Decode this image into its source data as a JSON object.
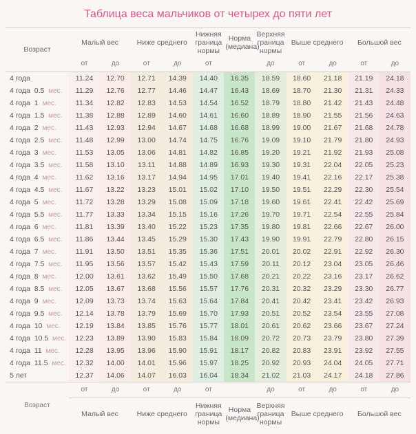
{
  "title": "Таблица веса мальчиков от четырех до пяти лет",
  "headers": {
    "age": "Возраст",
    "low": "Малый вес",
    "below": "Ниже среднего",
    "norm_low": "Нижняя граница нормы",
    "median": "Норма (медиана)",
    "norm_high": "Верхняя граница нормы",
    "above": "Выше среднего",
    "big": "Большой вес",
    "from": "от",
    "to": "до",
    "mes": "мес."
  },
  "rows": [
    {
      "age": "4 года",
      "sub": "",
      "v": [
        "11.24",
        "12.70",
        "12.71",
        "14.39",
        "14.40",
        "16.35",
        "18.59",
        "18.60",
        "21.18",
        "21.19",
        "24.18"
      ]
    },
    {
      "age": "4 года",
      "sub": "0.5",
      "v": [
        "11.29",
        "12.76",
        "12.77",
        "14.46",
        "14.47",
        "16.43",
        "18.69",
        "18.70",
        "21.30",
        "21.31",
        "24.33"
      ]
    },
    {
      "age": "4 года",
      "sub": "1",
      "v": [
        "11.34",
        "12.82",
        "12.83",
        "14.53",
        "14.54",
        "16.52",
        "18.79",
        "18.80",
        "21.42",
        "21.43",
        "24.48"
      ]
    },
    {
      "age": "4 года",
      "sub": "1.5",
      "v": [
        "11.38",
        "12.88",
        "12.89",
        "14.60",
        "14.61",
        "16.60",
        "18.89",
        "18.90",
        "21.55",
        "21.56",
        "24.63"
      ]
    },
    {
      "age": "4 года",
      "sub": "2",
      "v": [
        "11.43",
        "12.93",
        "12.94",
        "14.67",
        "14.68",
        "16.68",
        "18.99",
        "19.00",
        "21.67",
        "21.68",
        "24.78"
      ]
    },
    {
      "age": "4 года",
      "sub": "2.5",
      "v": [
        "11.48",
        "12.99",
        "13.00",
        "14.74",
        "14.75",
        "16.76",
        "19.09",
        "19.10",
        "21.79",
        "21.80",
        "24.93"
      ]
    },
    {
      "age": "4 года",
      "sub": "3",
      "v": [
        "11.53",
        "13.05",
        "13.06",
        "14.81",
        "14.82",
        "16.85",
        "19.20",
        "19.21",
        "21.92",
        "21.93",
        "25.08"
      ]
    },
    {
      "age": "4 года",
      "sub": "3.5",
      "v": [
        "11.58",
        "13.10",
        "13.11",
        "14.88",
        "14.89",
        "16.93",
        "19.30",
        "19.31",
        "22.04",
        "22.05",
        "25.23"
      ]
    },
    {
      "age": "4 года",
      "sub": "4",
      "v": [
        "11.62",
        "13.16",
        "13.17",
        "14.94",
        "14.95",
        "17.01",
        "19.40",
        "19.41",
        "22.16",
        "22.17",
        "25.38"
      ]
    },
    {
      "age": "4 года",
      "sub": "4.5",
      "v": [
        "11.67",
        "13.22",
        "13.23",
        "15.01",
        "15.02",
        "17.10",
        "19.50",
        "19.51",
        "22.29",
        "22.30",
        "25.54"
      ]
    },
    {
      "age": "4 года",
      "sub": "5",
      "v": [
        "11.72",
        "13.28",
        "13.29",
        "15.08",
        "15.09",
        "17.18",
        "19.60",
        "19.61",
        "22.41",
        "22.42",
        "25.69"
      ]
    },
    {
      "age": "4 года",
      "sub": "5.5",
      "v": [
        "11.77",
        "13.33",
        "13.34",
        "15.15",
        "15.16",
        "17.26",
        "19.70",
        "19.71",
        "22.54",
        "22.55",
        "25.84"
      ]
    },
    {
      "age": "4 года",
      "sub": "6",
      "v": [
        "11.81",
        "13.39",
        "13.40",
        "15.22",
        "15.23",
        "17.35",
        "19.80",
        "19.81",
        "22.66",
        "22.67",
        "26.00"
      ]
    },
    {
      "age": "4 года",
      "sub": "6.5",
      "v": [
        "11.86",
        "13.44",
        "13.45",
        "15.29",
        "15.30",
        "17.43",
        "19.90",
        "19.91",
        "22.79",
        "22.80",
        "26.15"
      ]
    },
    {
      "age": "4 года",
      "sub": "7",
      "v": [
        "11.91",
        "13.50",
        "13.51",
        "15.35",
        "15.36",
        "17.51",
        "20.01",
        "20.02",
        "22.91",
        "22.92",
        "26.30"
      ]
    },
    {
      "age": "4 года",
      "sub": "7.5",
      "v": [
        "11.95",
        "13.56",
        "13.57",
        "15.42",
        "15.43",
        "17.59",
        "20.11",
        "20.12",
        "23.04",
        "23.05",
        "26.46"
      ]
    },
    {
      "age": "4 года",
      "sub": "8",
      "v": [
        "12.00",
        "13.61",
        "13.62",
        "15.49",
        "15.50",
        "17.68",
        "20.21",
        "20.22",
        "23.16",
        "23.17",
        "26.62"
      ]
    },
    {
      "age": "4 года",
      "sub": "8.5",
      "v": [
        "12.05",
        "13.67",
        "13.68",
        "15.56",
        "15.57",
        "17.76",
        "20.31",
        "20.32",
        "23.29",
        "23.30",
        "26.77"
      ]
    },
    {
      "age": "4 года",
      "sub": "9",
      "v": [
        "12.09",
        "13.73",
        "13.74",
        "15.63",
        "15.64",
        "17.84",
        "20.41",
        "20.42",
        "23.41",
        "23.42",
        "26.93"
      ]
    },
    {
      "age": "4 года",
      "sub": "9.5",
      "v": [
        "12.14",
        "13.78",
        "13.79",
        "15.69",
        "15.70",
        "17.93",
        "20.51",
        "20.52",
        "23.54",
        "23.55",
        "27.08"
      ]
    },
    {
      "age": "4 года",
      "sub": "10",
      "v": [
        "12.19",
        "13.84",
        "13.85",
        "15.76",
        "15.77",
        "18.01",
        "20.61",
        "20.62",
        "23.66",
        "23.67",
        "27.24"
      ]
    },
    {
      "age": "4 года",
      "sub": "10.5",
      "v": [
        "12.23",
        "13.89",
        "13.90",
        "15.83",
        "15.84",
        "18.09",
        "20.72",
        "20.73",
        "23.79",
        "23.80",
        "27.39"
      ]
    },
    {
      "age": "4 года",
      "sub": "11",
      "v": [
        "12.28",
        "13.95",
        "13.96",
        "15.90",
        "15.91",
        "18.17",
        "20.82",
        "20.83",
        "23.91",
        "23.92",
        "27.55"
      ]
    },
    {
      "age": "4 года",
      "sub": "11.5",
      "v": [
        "12.32",
        "14.00",
        "14.01",
        "15.96",
        "15.97",
        "18.25",
        "20.92",
        "20.93",
        "24.04",
        "24.05",
        "27.71"
      ]
    },
    {
      "age": "5 лет",
      "sub": "",
      "v": [
        "12.37",
        "14.06",
        "14.07",
        "16.03",
        "16.04",
        "18.34",
        "21.02",
        "21.03",
        "24.17",
        "24.18",
        "27.86"
      ]
    }
  ],
  "col_classes": [
    "c-low1",
    "c-low2",
    "c-mid1",
    "c-mid2",
    "c-lo",
    "c-med",
    "c-hi",
    "c-up1",
    "c-up2",
    "c-big1",
    "c-big2"
  ]
}
